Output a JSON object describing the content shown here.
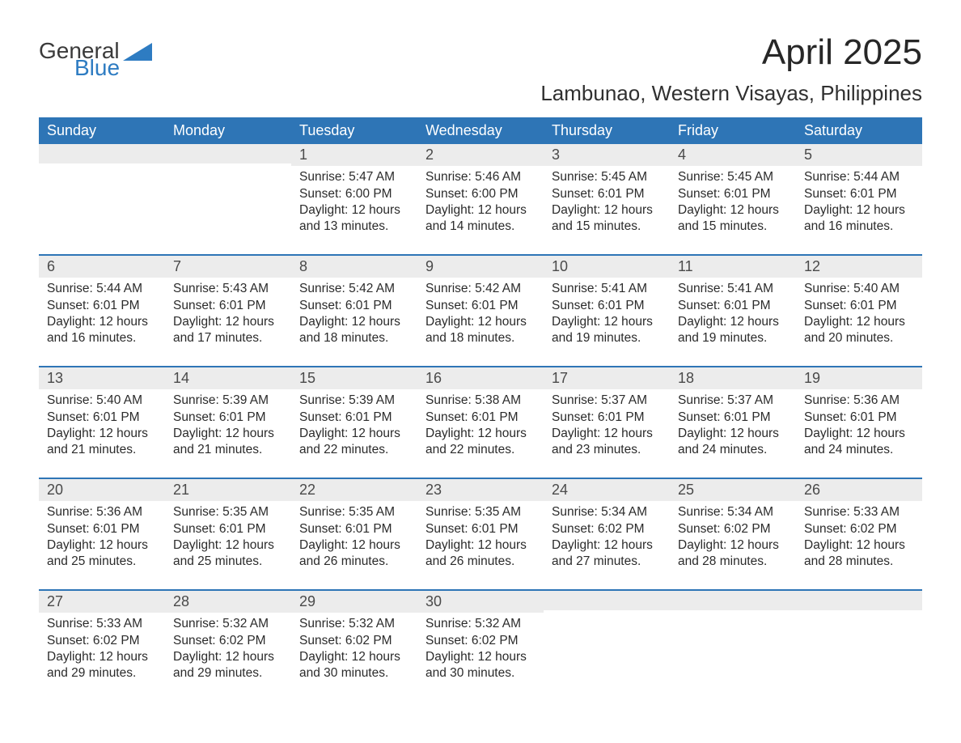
{
  "logo": {
    "general": "General",
    "blue": "Blue",
    "accent_color": "#2e7cc2"
  },
  "title": "April 2025",
  "subtitle": "Lambunao, Western Visayas, Philippines",
  "colors": {
    "header_bg": "#2e75b6",
    "header_text": "#ffffff",
    "daynum_bg": "#ececec",
    "row_divider": "#2e75b6",
    "body_text": "#2b2b2b",
    "title_text": "#272727"
  },
  "fonts": {
    "title_size": 44,
    "subtitle_size": 26,
    "weekday_size": 18,
    "body_size": 15.5
  },
  "calendar": {
    "type": "calendar-table",
    "weekdays": [
      "Sunday",
      "Monday",
      "Tuesday",
      "Wednesday",
      "Thursday",
      "Friday",
      "Saturday"
    ],
    "weeks": [
      [
        null,
        null,
        {
          "n": "1",
          "sunrise": "Sunrise: 5:47 AM",
          "sunset": "Sunset: 6:00 PM",
          "d1": "Daylight: 12 hours",
          "d2": "and 13 minutes."
        },
        {
          "n": "2",
          "sunrise": "Sunrise: 5:46 AM",
          "sunset": "Sunset: 6:00 PM",
          "d1": "Daylight: 12 hours",
          "d2": "and 14 minutes."
        },
        {
          "n": "3",
          "sunrise": "Sunrise: 5:45 AM",
          "sunset": "Sunset: 6:01 PM",
          "d1": "Daylight: 12 hours",
          "d2": "and 15 minutes."
        },
        {
          "n": "4",
          "sunrise": "Sunrise: 5:45 AM",
          "sunset": "Sunset: 6:01 PM",
          "d1": "Daylight: 12 hours",
          "d2": "and 15 minutes."
        },
        {
          "n": "5",
          "sunrise": "Sunrise: 5:44 AM",
          "sunset": "Sunset: 6:01 PM",
          "d1": "Daylight: 12 hours",
          "d2": "and 16 minutes."
        }
      ],
      [
        {
          "n": "6",
          "sunrise": "Sunrise: 5:44 AM",
          "sunset": "Sunset: 6:01 PM",
          "d1": "Daylight: 12 hours",
          "d2": "and 16 minutes."
        },
        {
          "n": "7",
          "sunrise": "Sunrise: 5:43 AM",
          "sunset": "Sunset: 6:01 PM",
          "d1": "Daylight: 12 hours",
          "d2": "and 17 minutes."
        },
        {
          "n": "8",
          "sunrise": "Sunrise: 5:42 AM",
          "sunset": "Sunset: 6:01 PM",
          "d1": "Daylight: 12 hours",
          "d2": "and 18 minutes."
        },
        {
          "n": "9",
          "sunrise": "Sunrise: 5:42 AM",
          "sunset": "Sunset: 6:01 PM",
          "d1": "Daylight: 12 hours",
          "d2": "and 18 minutes."
        },
        {
          "n": "10",
          "sunrise": "Sunrise: 5:41 AM",
          "sunset": "Sunset: 6:01 PM",
          "d1": "Daylight: 12 hours",
          "d2": "and 19 minutes."
        },
        {
          "n": "11",
          "sunrise": "Sunrise: 5:41 AM",
          "sunset": "Sunset: 6:01 PM",
          "d1": "Daylight: 12 hours",
          "d2": "and 19 minutes."
        },
        {
          "n": "12",
          "sunrise": "Sunrise: 5:40 AM",
          "sunset": "Sunset: 6:01 PM",
          "d1": "Daylight: 12 hours",
          "d2": "and 20 minutes."
        }
      ],
      [
        {
          "n": "13",
          "sunrise": "Sunrise: 5:40 AM",
          "sunset": "Sunset: 6:01 PM",
          "d1": "Daylight: 12 hours",
          "d2": "and 21 minutes."
        },
        {
          "n": "14",
          "sunrise": "Sunrise: 5:39 AM",
          "sunset": "Sunset: 6:01 PM",
          "d1": "Daylight: 12 hours",
          "d2": "and 21 minutes."
        },
        {
          "n": "15",
          "sunrise": "Sunrise: 5:39 AM",
          "sunset": "Sunset: 6:01 PM",
          "d1": "Daylight: 12 hours",
          "d2": "and 22 minutes."
        },
        {
          "n": "16",
          "sunrise": "Sunrise: 5:38 AM",
          "sunset": "Sunset: 6:01 PM",
          "d1": "Daylight: 12 hours",
          "d2": "and 22 minutes."
        },
        {
          "n": "17",
          "sunrise": "Sunrise: 5:37 AM",
          "sunset": "Sunset: 6:01 PM",
          "d1": "Daylight: 12 hours",
          "d2": "and 23 minutes."
        },
        {
          "n": "18",
          "sunrise": "Sunrise: 5:37 AM",
          "sunset": "Sunset: 6:01 PM",
          "d1": "Daylight: 12 hours",
          "d2": "and 24 minutes."
        },
        {
          "n": "19",
          "sunrise": "Sunrise: 5:36 AM",
          "sunset": "Sunset: 6:01 PM",
          "d1": "Daylight: 12 hours",
          "d2": "and 24 minutes."
        }
      ],
      [
        {
          "n": "20",
          "sunrise": "Sunrise: 5:36 AM",
          "sunset": "Sunset: 6:01 PM",
          "d1": "Daylight: 12 hours",
          "d2": "and 25 minutes."
        },
        {
          "n": "21",
          "sunrise": "Sunrise: 5:35 AM",
          "sunset": "Sunset: 6:01 PM",
          "d1": "Daylight: 12 hours",
          "d2": "and 25 minutes."
        },
        {
          "n": "22",
          "sunrise": "Sunrise: 5:35 AM",
          "sunset": "Sunset: 6:01 PM",
          "d1": "Daylight: 12 hours",
          "d2": "and 26 minutes."
        },
        {
          "n": "23",
          "sunrise": "Sunrise: 5:35 AM",
          "sunset": "Sunset: 6:01 PM",
          "d1": "Daylight: 12 hours",
          "d2": "and 26 minutes."
        },
        {
          "n": "24",
          "sunrise": "Sunrise: 5:34 AM",
          "sunset": "Sunset: 6:02 PM",
          "d1": "Daylight: 12 hours",
          "d2": "and 27 minutes."
        },
        {
          "n": "25",
          "sunrise": "Sunrise: 5:34 AM",
          "sunset": "Sunset: 6:02 PM",
          "d1": "Daylight: 12 hours",
          "d2": "and 28 minutes."
        },
        {
          "n": "26",
          "sunrise": "Sunrise: 5:33 AM",
          "sunset": "Sunset: 6:02 PM",
          "d1": "Daylight: 12 hours",
          "d2": "and 28 minutes."
        }
      ],
      [
        {
          "n": "27",
          "sunrise": "Sunrise: 5:33 AM",
          "sunset": "Sunset: 6:02 PM",
          "d1": "Daylight: 12 hours",
          "d2": "and 29 minutes."
        },
        {
          "n": "28",
          "sunrise": "Sunrise: 5:32 AM",
          "sunset": "Sunset: 6:02 PM",
          "d1": "Daylight: 12 hours",
          "d2": "and 29 minutes."
        },
        {
          "n": "29",
          "sunrise": "Sunrise: 5:32 AM",
          "sunset": "Sunset: 6:02 PM",
          "d1": "Daylight: 12 hours",
          "d2": "and 30 minutes."
        },
        {
          "n": "30",
          "sunrise": "Sunrise: 5:32 AM",
          "sunset": "Sunset: 6:02 PM",
          "d1": "Daylight: 12 hours",
          "d2": "and 30 minutes."
        },
        null,
        null,
        null
      ]
    ]
  }
}
